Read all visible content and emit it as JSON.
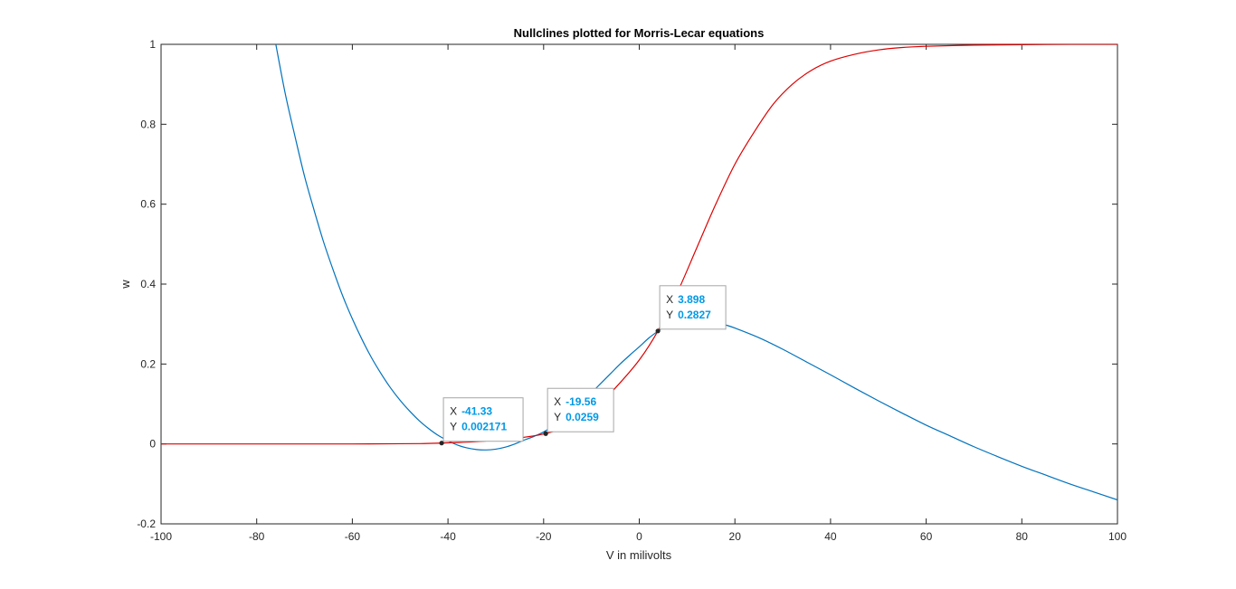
{
  "chart_data": {
    "type": "line",
    "title": "Nullclines plotted for Morris-Lecar equations",
    "xlabel": "V in milivolts",
    "ylabel": "w",
    "xlim": [
      -100,
      100
    ],
    "ylim": [
      -0.2,
      1
    ],
    "xticks": [
      "-100",
      "-80",
      "-60",
      "-40",
      "-20",
      "0",
      "20",
      "40",
      "60",
      "80",
      "100"
    ],
    "yticks": [
      "-0.2",
      "0",
      "0.2",
      "0.4",
      "0.6",
      "0.8",
      "1"
    ],
    "grid": false,
    "series": [
      {
        "color": "#0072bd",
        "x": [
          -76,
          -74,
          -72,
          -70,
          -68,
          -66,
          -64,
          -62,
          -60,
          -58,
          -56,
          -54,
          -52,
          -50,
          -48,
          -46,
          -44,
          -42,
          -40,
          -38,
          -36,
          -34,
          -32,
          -30,
          -28,
          -26,
          -24,
          -22,
          -20,
          -18,
          -16,
          -14,
          -12,
          -10,
          -8,
          -6,
          -4,
          -2,
          0,
          2,
          4,
          6,
          8,
          10,
          12,
          14,
          16,
          18,
          20,
          25,
          30,
          35,
          40,
          45,
          50,
          55,
          60,
          65,
          70,
          75,
          80,
          85,
          90,
          95,
          100
        ],
        "y": [
          1.0,
          0.875,
          0.77,
          0.67,
          0.585,
          0.505,
          0.435,
          0.37,
          0.313,
          0.262,
          0.216,
          0.176,
          0.14,
          0.109,
          0.082,
          0.058,
          0.038,
          0.021,
          0.008,
          -0.003,
          -0.01,
          -0.014,
          -0.015,
          -0.013,
          -0.008,
          -0.0,
          0.01,
          0.019,
          0.03,
          0.045,
          0.063,
          0.083,
          0.105,
          0.128,
          0.152,
          0.176,
          0.2,
          0.222,
          0.243,
          0.265,
          0.283,
          0.299,
          0.309,
          0.313,
          0.313,
          0.31,
          0.305,
          0.298,
          0.29,
          0.266,
          0.237,
          0.205,
          0.173,
          0.14,
          0.108,
          0.077,
          0.047,
          0.02,
          -0.007,
          -0.032,
          -0.056,
          -0.078,
          -0.1,
          -0.12,
          -0.14
        ]
      },
      {
        "color": "#dd0000",
        "x": [
          -100,
          -90,
          -80,
          -70,
          -60,
          -50,
          -45,
          -41.33,
          -35,
          -30,
          -25,
          -19.56,
          -15,
          -10,
          -5,
          0,
          3.898,
          8,
          12,
          16,
          20,
          24,
          28,
          32,
          36,
          40,
          45,
          50,
          55,
          60,
          70,
          80,
          90,
          100
        ],
        "y": [
          0.0,
          0.0,
          0.0,
          0.0,
          0.0,
          0.0005,
          0.001,
          0.002171,
          0.005,
          0.009,
          0.015,
          0.0259,
          0.045,
          0.08,
          0.14,
          0.21,
          0.2827,
          0.38,
          0.49,
          0.6,
          0.7,
          0.78,
          0.85,
          0.9,
          0.935,
          0.958,
          0.975,
          0.986,
          0.992,
          0.995,
          0.998,
          0.999,
          1.0,
          1.0
        ]
      }
    ],
    "datatips": [
      {
        "x_label": "X",
        "x_value": "-41.33",
        "y_label": "Y",
        "y_value": "0.002171",
        "x": -41.33,
        "y": 0.002171
      },
      {
        "x_label": "X",
        "x_value": "-19.56",
        "y_label": "Y",
        "y_value": "0.0259",
        "x": -19.56,
        "y": 0.0259
      },
      {
        "x_label": "X",
        "x_value": "3.898",
        "y_label": "Y",
        "y_value": "0.2827",
        "x": 3.898,
        "y": 0.2827
      }
    ]
  }
}
